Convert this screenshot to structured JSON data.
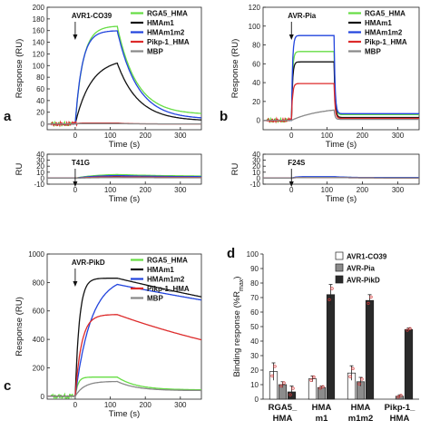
{
  "colors": {
    "RGA5_HMA": "#66dd44",
    "HMAm1": "#111111",
    "HMAm1m2": "#2244dd",
    "Pikp-1_HMA": "#dd2a2a",
    "MBP": "#888888",
    "bar_AVR1-CO39": "#ffffff",
    "bar_AVR-Pia": "#8c8c8c",
    "bar_AVR-PikD": "#2a2a2a",
    "errorbar": "#d43a3a"
  },
  "chart_data": [
    {
      "id": "a",
      "type": "line",
      "panel_label": "a",
      "annotation": "AVR1-CO39",
      "xlabel": "Time (s)",
      "ylabel": "Response (RU)",
      "xlim": [
        -80,
        360
      ],
      "ylim": [
        -10,
        200
      ],
      "xticks": [
        0,
        100,
        200,
        300
      ],
      "yticks": [
        0,
        20,
        40,
        60,
        80,
        100,
        120,
        140,
        160,
        180,
        200
      ],
      "legend": [
        "RGA5_HMA",
        "HMAm1",
        "HMAm1m2",
        "Pikp-1_HMA",
        "MBP"
      ],
      "series": [
        {
          "name": "RGA5_HMA",
          "plateau": 168,
          "resid": 16,
          "rise": 22,
          "decay": 55,
          "noise": true
        },
        {
          "name": "HMAm1",
          "plateau": 112,
          "resid": 5,
          "rise": 45,
          "decay": 60
        },
        {
          "name": "HMAm1m2",
          "plateau": 160,
          "resid": 8,
          "rise": 20,
          "decay": 58
        },
        {
          "name": "Pikp-1_HMA",
          "plateau": 1.5,
          "resid": 0,
          "rise": 10,
          "decay": 30,
          "noise": true
        },
        {
          "name": "MBP",
          "plateau": 0.5,
          "resid": 0,
          "rise": 10,
          "decay": 30
        }
      ]
    },
    {
      "id": "a2",
      "type": "line",
      "annotation": "T41G",
      "xlabel": "Time (s)",
      "ylabel": "RU",
      "xlim": [
        -80,
        360
      ],
      "ylim": [
        -10,
        40
      ],
      "xticks": [
        0,
        100,
        200,
        300
      ],
      "yticks": [
        -10,
        0,
        10,
        20,
        30,
        40
      ],
      "series": [
        {
          "name": "RGA5_HMA",
          "plateau": 7,
          "resid": 3,
          "rise": 60,
          "decay": 150
        },
        {
          "name": "HMAm1",
          "plateau": 3,
          "resid": 1,
          "rise": 60,
          "decay": 150
        },
        {
          "name": "HMAm1m2",
          "plateau": 5,
          "resid": 2,
          "rise": 60,
          "decay": 150
        },
        {
          "name": "Pikp-1_HMA",
          "plateau": 2.5,
          "resid": 1,
          "rise": 60,
          "decay": 150
        },
        {
          "name": "MBP",
          "plateau": 1,
          "resid": 0.5,
          "rise": 60,
          "decay": 150
        }
      ]
    },
    {
      "id": "b",
      "type": "line",
      "panel_label": "b",
      "annotation": "AVR-Pia",
      "xlabel": "Time (s)",
      "ylabel": "Response (RU)",
      "xlim": [
        -80,
        360
      ],
      "ylim": [
        -10,
        120
      ],
      "xticks": [
        0,
        100,
        200,
        300
      ],
      "yticks": [
        0,
        20,
        40,
        60,
        80,
        100,
        120
      ],
      "legend": [
        "RGA5_HMA",
        "HMAm1",
        "HMAm1m2",
        "Pikp-1_HMA",
        "MBP"
      ],
      "series": [
        {
          "name": "RGA5_HMA",
          "plateau": 73,
          "resid": 6,
          "rise": 3,
          "decay": 3,
          "noise": true
        },
        {
          "name": "HMAm1",
          "plateau": 62,
          "resid": 3,
          "rise": 3,
          "decay": 3
        },
        {
          "name": "HMAm1m2",
          "plateau": 90,
          "resid": 7,
          "rise": 3,
          "decay": 3
        },
        {
          "name": "Pikp-1_HMA",
          "plateau": 39,
          "resid": 2,
          "rise": 3,
          "decay": 3,
          "noise": true
        },
        {
          "name": "MBP",
          "plateau": 14,
          "resid": 1,
          "rise": 80,
          "decay": 3
        }
      ]
    },
    {
      "id": "b2",
      "type": "line",
      "annotation": "F24S",
      "xlabel": "Time (s)",
      "ylabel": "RU",
      "xlim": [
        -80,
        360
      ],
      "ylim": [
        -10,
        40
      ],
      "xticks": [
        0,
        100,
        200,
        300
      ],
      "yticks": [
        -10,
        0,
        10,
        20,
        30,
        40
      ],
      "series": [
        {
          "name": "RGA5_HMA",
          "plateau": 2,
          "resid": 1,
          "rise": 10,
          "decay": 40
        },
        {
          "name": "HMAm1",
          "plateau": 1.5,
          "resid": 0.5,
          "rise": 10,
          "decay": 40
        },
        {
          "name": "HMAm1m2",
          "plateau": 2.5,
          "resid": 1,
          "rise": 10,
          "decay": 40
        },
        {
          "name": "Pikp-1_HMA",
          "plateau": 1,
          "resid": 0.5,
          "rise": 10,
          "decay": 40
        },
        {
          "name": "MBP",
          "plateau": 1,
          "resid": 0.5,
          "rise": 10,
          "decay": 40
        }
      ]
    },
    {
      "id": "c",
      "type": "line",
      "panel_label": "c",
      "annotation": "AVR-PikD",
      "xlabel": "Time (s)",
      "ylabel": "Response (RU)",
      "xlim": [
        -80,
        360
      ],
      "ylim": [
        -20,
        1000
      ],
      "xticks": [
        0,
        100,
        200,
        300
      ],
      "yticks": [
        0,
        200,
        400,
        600,
        800,
        1000
      ],
      "legend": [
        "RGA5_HMA",
        "HMAm1",
        "HMAm1m2",
        "Pikp-1_HMA",
        "MBP"
      ],
      "series": [
        {
          "name": "RGA5_HMA",
          "plateau": 135,
          "resid": 45,
          "rise": 8,
          "decay": 55,
          "noise": true
        },
        {
          "name": "HMAm1",
          "plateau": 830,
          "resid": 0,
          "rise": 12,
          "decay": 1400,
          "start": 0
        },
        {
          "name": "HMAm1m2",
          "plateau": 845,
          "resid": 0,
          "rise": 45,
          "decay": 1600,
          "start": 0
        },
        {
          "name": "Pikp-1_HMA",
          "plateau": 575,
          "resid": 0,
          "rise": 18,
          "decay": 650,
          "start": 0
        },
        {
          "name": "MBP",
          "plateau": 105,
          "resid": 40,
          "rise": 25,
          "decay": 55
        }
      ]
    },
    {
      "id": "d",
      "type": "bar",
      "panel_label": "d",
      "xlabel": "",
      "ylabel_main": "Binding response (%R",
      "ylabel_sub": "max",
      "ylabel_end": ")",
      "ylim": [
        0,
        100
      ],
      "yticks": [
        0,
        10,
        20,
        30,
        40,
        50,
        60,
        70,
        80,
        90,
        100
      ],
      "categories": [
        [
          "RGA5_",
          "HMA"
        ],
        [
          "HMA",
          "m1"
        ],
        [
          "HMA",
          "m1m2"
        ],
        [
          "Pikp-1_",
          "HMA"
        ]
      ],
      "series": [
        {
          "name": "AVR1-CO39",
          "values": [
            19,
            14,
            18,
            0
          ],
          "errors": [
            6,
            2,
            5,
            0
          ]
        },
        {
          "name": "AVR-Pia",
          "values": [
            10,
            8,
            12,
            2
          ],
          "errors": [
            2,
            1,
            3,
            1
          ]
        },
        {
          "name": "AVR-PikD",
          "values": [
            5,
            72,
            68,
            48
          ],
          "errors": [
            4,
            7,
            4,
            1
          ]
        }
      ]
    }
  ]
}
